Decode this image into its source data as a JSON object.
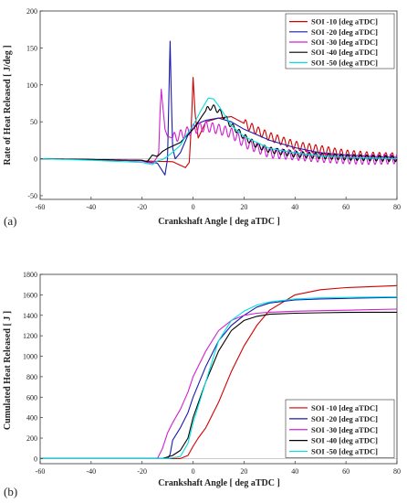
{
  "chart_data": [
    {
      "type": "line",
      "panel_label": "(a)",
      "xlabel": "Crankshaft Angle [ deg aTDC ]",
      "ylabel": "Rate of Heat Released [ J/deg ]",
      "xlim": [
        -60,
        80
      ],
      "ylim": [
        -55,
        200
      ],
      "xticks": [
        -60,
        -40,
        -20,
        0,
        20,
        40,
        60,
        80
      ],
      "yticks": [
        -50,
        0,
        50,
        100,
        150,
        200
      ],
      "grid": false,
      "legend_position": "top-right",
      "series": [
        {
          "name": "SOI -10 [deg aTDC]",
          "color": "#d00000",
          "x": [
            -60,
            -40,
            -20,
            -8,
            -3,
            -1.5,
            -0.7,
            0,
            0.8,
            2,
            5,
            10,
            15,
            20,
            25,
            30,
            40,
            50,
            60,
            70,
            80
          ],
          "y": [
            0,
            -1,
            -3,
            -4,
            -12,
            -5,
            45,
            110,
            60,
            28,
            50,
            55,
            57,
            48,
            38,
            30,
            18,
            12,
            6,
            3,
            2
          ],
          "osc": {
            "amp": 6,
            "period": 2.5,
            "from": 20,
            "to": 80
          }
        },
        {
          "name": "SOI -20 [deg aTDC]",
          "color": "#1a1ab0",
          "x": [
            -60,
            -40,
            -20,
            -14,
            -11,
            -10,
            -9.5,
            -9,
            -8.5,
            -8,
            -7,
            -5,
            -2,
            2,
            5,
            10,
            15,
            20,
            30,
            40,
            50,
            60,
            70,
            80
          ],
          "y": [
            0,
            -1,
            -3,
            -6,
            -22,
            0,
            80,
            159,
            80,
            15,
            0,
            8,
            32,
            48,
            52,
            55,
            50,
            40,
            25,
            15,
            8,
            5,
            3,
            2
          ]
        },
        {
          "name": "SOI -30 [deg aTDC]",
          "color": "#d020d0",
          "x": [
            -60,
            -40,
            -20,
            -18,
            -16,
            -14.5,
            -13.5,
            -13,
            -12.5,
            -12,
            -11,
            -10,
            -8,
            -5,
            0,
            5,
            10,
            15,
            20,
            25,
            30,
            40,
            50,
            60,
            70,
            80
          ],
          "y": [
            0,
            -1,
            -3,
            -5,
            -6,
            0,
            8,
            60,
            94,
            75,
            40,
            30,
            28,
            32,
            40,
            44,
            40,
            35,
            22,
            15,
            8,
            5,
            2,
            0,
            -1,
            0
          ],
          "osc": {
            "amp": 7,
            "period": 2.5,
            "from": -8,
            "to": 80
          }
        },
        {
          "name": "SOI -40 [deg aTDC]",
          "color": "#000000",
          "x": [
            -60,
            -40,
            -20,
            -18,
            -16,
            -14,
            -12,
            -10,
            -5,
            0,
            3,
            5,
            7,
            9,
            12,
            15,
            20,
            25,
            30,
            40,
            50,
            60,
            70,
            80
          ],
          "y": [
            0,
            -1,
            -2,
            -4,
            5,
            3,
            10,
            14,
            22,
            40,
            55,
            65,
            70,
            68,
            58,
            45,
            30,
            18,
            12,
            6,
            4,
            2,
            1,
            0
          ],
          "osc": {
            "amp": 4,
            "period": 2.5,
            "from": 5,
            "to": 80
          }
        },
        {
          "name": "SOI -50 [deg aTDC]",
          "color": "#00e0e0",
          "x": [
            -60,
            -40,
            -20,
            -16,
            -14,
            -12,
            -10,
            -7,
            -5,
            -3,
            0,
            3,
            6,
            8,
            10,
            15,
            20,
            30,
            40,
            50,
            60,
            70,
            80
          ],
          "y": [
            0,
            -2,
            -5,
            -8,
            -3,
            -1,
            3,
            12,
            18,
            30,
            45,
            65,
            82,
            81,
            72,
            45,
            30,
            14,
            8,
            4,
            2,
            1,
            0
          ]
        }
      ]
    },
    {
      "type": "line",
      "panel_label": "(b)",
      "xlabel": "Crankshaft Angle [ deg aTDC ]",
      "ylabel": "Cumulated Heat Released [ J ]",
      "xlim": [
        -60,
        80
      ],
      "ylim": [
        -50,
        1800
      ],
      "xticks": [
        -60,
        -40,
        -20,
        0,
        20,
        40,
        60,
        80
      ],
      "yticks": [
        0,
        200,
        400,
        600,
        800,
        1000,
        1200,
        1400,
        1600,
        1800
      ],
      "grid": false,
      "legend_position": "bottom-right",
      "series": [
        {
          "name": "SOI -10 [deg aTDC]",
          "color": "#d00000",
          "x": [
            -60,
            -10,
            -5,
            -2,
            0,
            2,
            5,
            10,
            15,
            20,
            25,
            30,
            40,
            50,
            60,
            70,
            80
          ],
          "y": [
            0,
            0,
            0,
            30,
            120,
            200,
            300,
            550,
            850,
            1100,
            1300,
            1450,
            1600,
            1650,
            1670,
            1680,
            1690
          ]
        },
        {
          "name": "SOI -20 [deg aTDC]",
          "color": "#1a1ab0",
          "x": [
            -60,
            -10,
            -9,
            -8,
            -5,
            -2,
            0,
            5,
            10,
            15,
            20,
            25,
            30,
            40,
            50,
            60,
            70,
            80
          ],
          "y": [
            0,
            0,
            40,
            180,
            300,
            450,
            600,
            900,
            1150,
            1300,
            1400,
            1480,
            1520,
            1550,
            1560,
            1565,
            1570,
            1575
          ]
        },
        {
          "name": "SOI -30 [deg aTDC]",
          "color": "#d020d0",
          "x": [
            -60,
            -14,
            -12,
            -10,
            -8,
            -5,
            -2,
            0,
            5,
            10,
            15,
            20,
            25,
            30,
            40,
            50,
            60,
            70,
            80
          ],
          "y": [
            0,
            0,
            100,
            250,
            350,
            480,
            650,
            800,
            1050,
            1250,
            1350,
            1400,
            1420,
            1430,
            1440,
            1445,
            1450,
            1455,
            1460
          ]
        },
        {
          "name": "SOI -40 [deg aTDC]",
          "color": "#000000",
          "x": [
            -60,
            -12,
            -8,
            -5,
            -2,
            0,
            5,
            10,
            15,
            20,
            25,
            30,
            40,
            50,
            60,
            70,
            80
          ],
          "y": [
            0,
            0,
            30,
            80,
            200,
            400,
            750,
            1050,
            1250,
            1350,
            1390,
            1410,
            1420,
            1425,
            1428,
            1430,
            1430
          ]
        },
        {
          "name": "SOI -50 [deg aTDC]",
          "color": "#00e0e0",
          "x": [
            -60,
            -10,
            -5,
            -2,
            0,
            5,
            10,
            15,
            20,
            25,
            30,
            40,
            50,
            60,
            70,
            80
          ],
          "y": [
            0,
            0,
            20,
            150,
            350,
            750,
            1150,
            1350,
            1440,
            1500,
            1530,
            1560,
            1570,
            1575,
            1578,
            1580
          ]
        }
      ]
    }
  ]
}
